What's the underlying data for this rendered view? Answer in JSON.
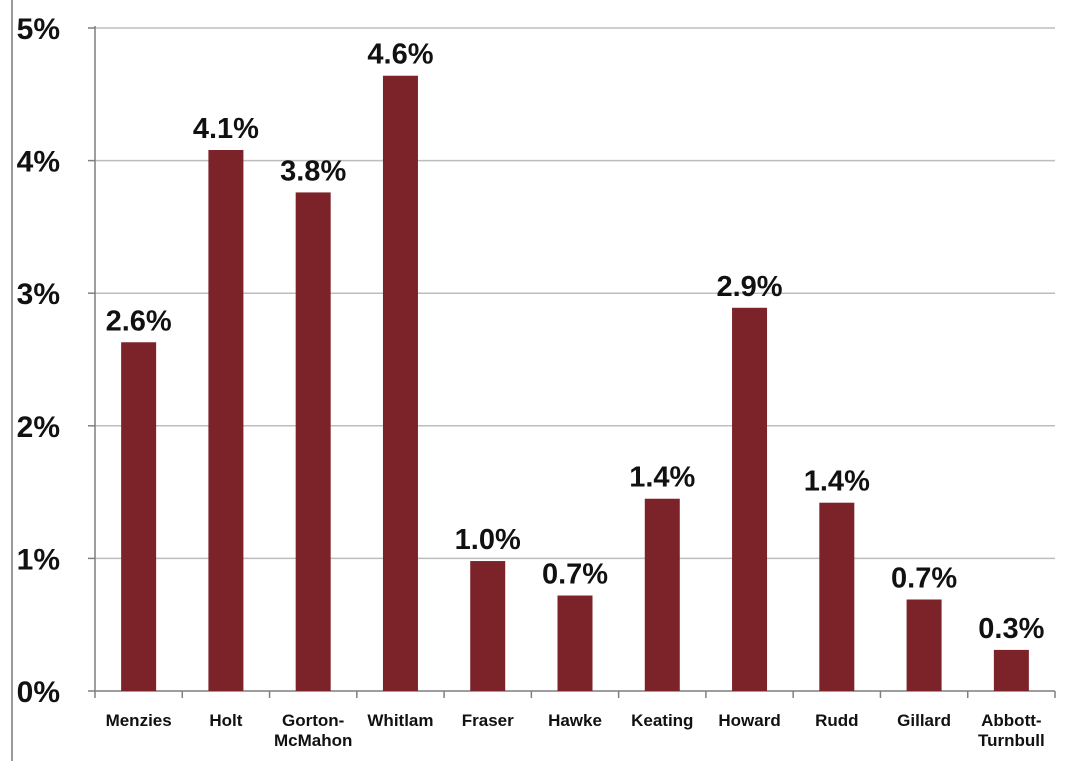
{
  "chart_data": {
    "type": "bar",
    "title": "",
    "xlabel": "",
    "ylabel": "",
    "categories": [
      [
        "Menzies"
      ],
      [
        "Holt"
      ],
      [
        "Gorton-",
        "McMahon"
      ],
      [
        "Whitlam"
      ],
      [
        "Fraser"
      ],
      [
        "Hawke"
      ],
      [
        "Keating"
      ],
      [
        "Howard"
      ],
      [
        "Rudd"
      ],
      [
        "Gillard"
      ],
      [
        "Abbott-",
        "Turnbull"
      ]
    ],
    "values": [
      2.63,
      4.08,
      3.76,
      4.64,
      0.98,
      0.72,
      1.45,
      2.89,
      1.42,
      0.69,
      0.31
    ],
    "data_labels": [
      "2.6%",
      "4.1%",
      "3.8%",
      "4.6%",
      "1.0%",
      "0.7%",
      "1.4%",
      "2.9%",
      "1.4%",
      "0.7%",
      "0.3%"
    ],
    "ylim": [
      0,
      5
    ],
    "yticks": [
      0,
      1,
      2,
      3,
      4,
      5
    ],
    "ytick_labels": [
      "0%",
      "1%",
      "2%",
      "3%",
      "4%",
      "5%"
    ],
    "grid": true,
    "legend": "none",
    "colors": {
      "bar": "#7b2329",
      "grid": "#bdbdbd",
      "axis": "#7f7f7f"
    }
  }
}
